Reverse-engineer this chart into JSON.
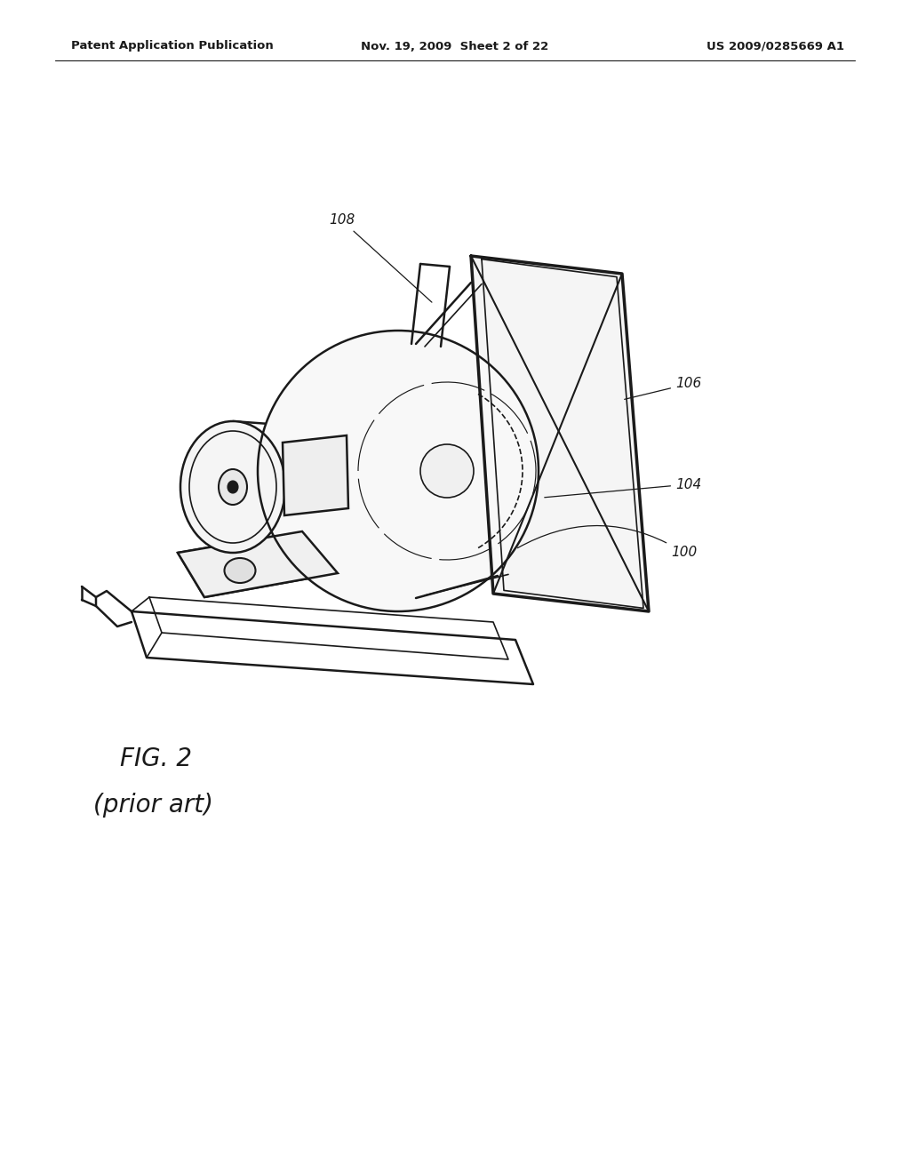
{
  "header_left": "Patent Application Publication",
  "header_mid": "Nov. 19, 2009  Sheet 2 of 22",
  "header_right": "US 2009/0285669 A1",
  "fig_label": "FIG. 2",
  "fig_sublabel": "(prior art)",
  "background_color": "#ffffff",
  "line_color": "#1a1a1a",
  "header_fontsize": 9.5,
  "fig_label_fontsize": 20,
  "fig_sublabel_fontsize": 20,
  "annotation_fontsize": 11
}
